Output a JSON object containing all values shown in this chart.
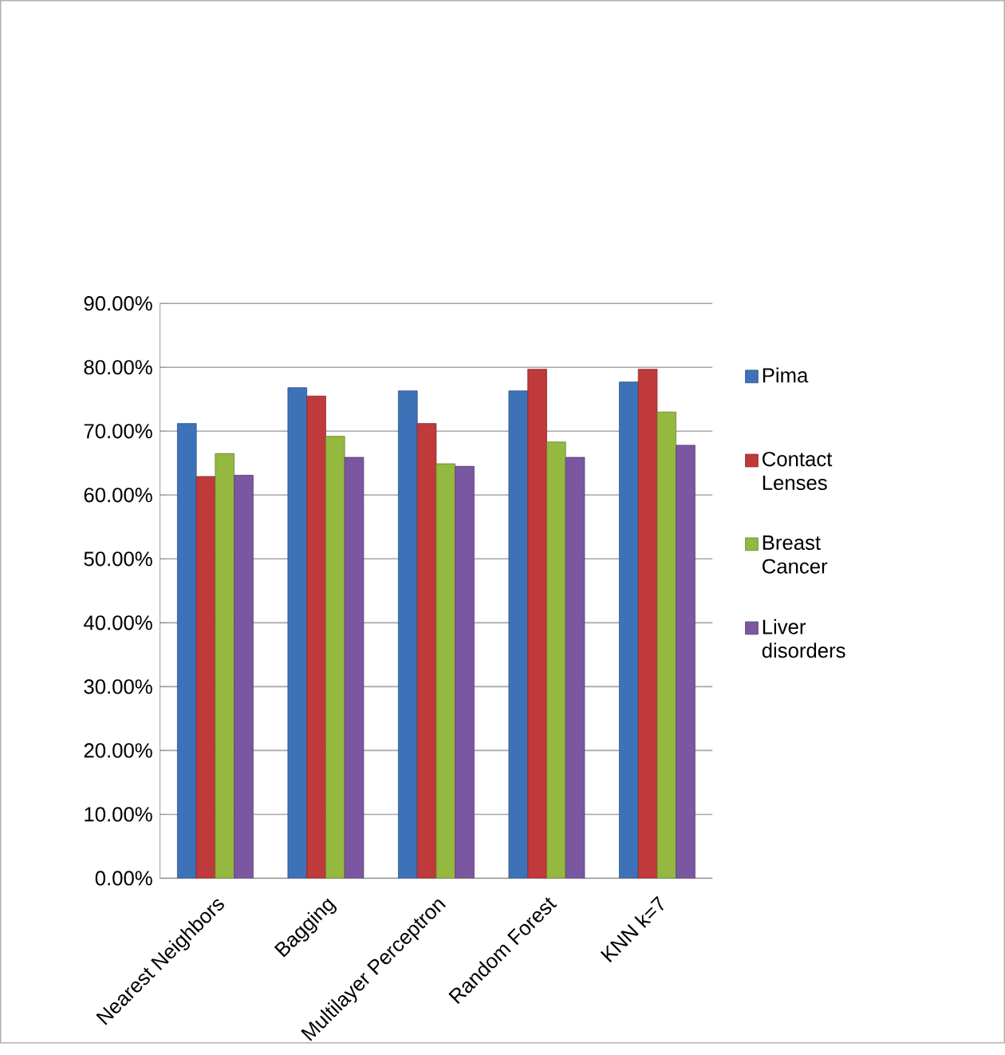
{
  "chart_data": {
    "type": "bar",
    "categories": [
      "Nearest Neighbors",
      "Bagging",
      "Multilayer Perceptron",
      "Random Forest",
      "KNN k=7"
    ],
    "series": [
      {
        "name": "Pima",
        "color": "#3d72b8",
        "values": [
          71.2,
          76.8,
          76.3,
          76.3,
          77.7
        ]
      },
      {
        "name": "Contact Lenses",
        "color": "#c0393b",
        "values": [
          62.9,
          75.5,
          71.2,
          79.7,
          79.7
        ]
      },
      {
        "name": "Breast Cancer",
        "color": "#94b840",
        "values": [
          66.5,
          69.2,
          64.9,
          68.3,
          73.0
        ]
      },
      {
        "name": "Liver disorders",
        "color": "#7a57a0",
        "values": [
          63.1,
          65.9,
          64.5,
          65.9,
          67.8
        ]
      }
    ],
    "ylim": [
      0,
      90
    ],
    "yticks": [
      {
        "value": 0,
        "label": "0.00%"
      },
      {
        "value": 10,
        "label": "10.00%"
      },
      {
        "value": 20,
        "label": "20.00%"
      },
      {
        "value": 30,
        "label": "30.00%"
      },
      {
        "value": 40,
        "label": "40.00%"
      },
      {
        "value": 50,
        "label": "50.00%"
      },
      {
        "value": 60,
        "label": "60.00%"
      },
      {
        "value": 70,
        "label": "70.00%"
      },
      {
        "value": 80,
        "label": "80.00%"
      },
      {
        "value": 90,
        "label": "90.00%"
      }
    ],
    "grid": "y",
    "legend": "right"
  }
}
